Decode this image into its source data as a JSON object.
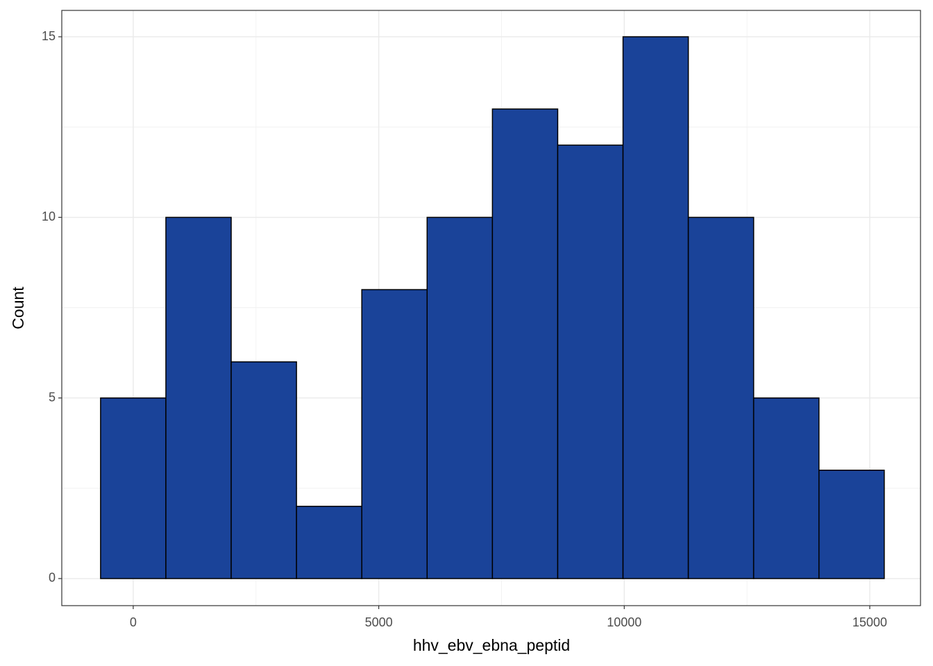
{
  "chart_data": {
    "type": "histogram",
    "x_label": "hhv_ebv_ebna_peptid",
    "y_label": "Count",
    "bins": [
      -665,
      665,
      1995,
      3325,
      4655,
      5985,
      7315,
      8645,
      9975,
      11305,
      12635,
      13965,
      15295
    ],
    "values": [
      5,
      10,
      6,
      2,
      8,
      10,
      13,
      12,
      15,
      10,
      5,
      3
    ],
    "color": "#1a4399",
    "edgecolor": "#000000",
    "xlim": [
      -1455,
      16033
    ],
    "xticks": [
      0,
      5000,
      10000,
      15000
    ],
    "xminor": [
      2500,
      7500,
      12500
    ],
    "ylim": [
      -0.75,
      15.73
    ],
    "yticks": [
      0,
      5,
      10,
      15
    ],
    "yminor": [
      2.5,
      7.5,
      12.5
    ],
    "grid": true
  }
}
